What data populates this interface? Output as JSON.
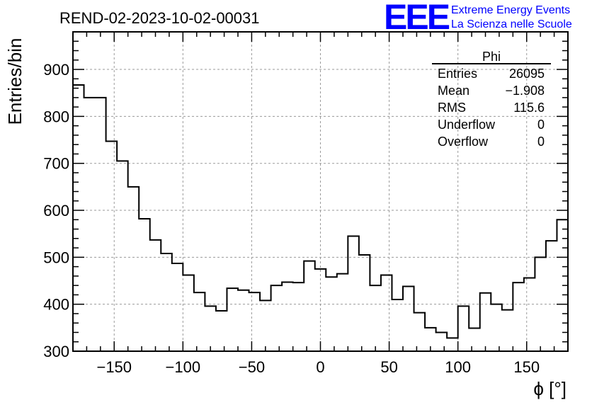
{
  "header": {
    "run_title": "REND-02-2023-10-02-00031"
  },
  "logo": {
    "mark": "EEE",
    "line1": "Extreme Energy Events",
    "line2": "La Scienza nelle Scuole",
    "color": "#0000ff"
  },
  "stats": {
    "name": "Phi",
    "rows": [
      {
        "label": "Entries",
        "value": "26095"
      },
      {
        "label": "Mean",
        "value": "−1.908"
      },
      {
        "label": "RMS",
        "value": "115.6"
      },
      {
        "label": "Underflow",
        "value": "0"
      },
      {
        "label": "Overflow",
        "value": "0"
      }
    ]
  },
  "chart_data": {
    "type": "bar",
    "style": "step-histogram",
    "title": "REND-02-2023-10-02-00031",
    "xlabel": "ϕ [°]",
    "ylabel": "Entries/bin",
    "xlim": [
      -180,
      180
    ],
    "ylim": [
      300,
      980
    ],
    "bin_width": 8,
    "x_ticks": [
      -150,
      -100,
      -50,
      0,
      50,
      100,
      150
    ],
    "x_tick_labels": [
      "−150",
      "−100",
      "−50",
      "0",
      "50",
      "100",
      "150"
    ],
    "y_ticks": [
      300,
      400,
      500,
      600,
      700,
      800,
      900
    ],
    "y_tick_labels": [
      "300",
      "400",
      "500",
      "600",
      "700",
      "800",
      "900"
    ],
    "grid": true,
    "bin_edges": [
      -180,
      -172,
      -164,
      -156,
      -148,
      -140,
      -132,
      -124,
      -116,
      -108,
      -100,
      -92,
      -84,
      -76,
      -68,
      -60,
      -52,
      -44,
      -36,
      -28,
      -20,
      -12,
      -4,
      4,
      12,
      20,
      28,
      36,
      44,
      52,
      60,
      68,
      76,
      84,
      92,
      100,
      108,
      116,
      124,
      132,
      140,
      148,
      156,
      164,
      172,
      180
    ],
    "values": [
      867,
      840,
      840,
      747,
      705,
      650,
      582,
      537,
      508,
      487,
      462,
      425,
      396,
      386,
      434,
      430,
      425,
      408,
      440,
      447,
      446,
      492,
      475,
      458,
      465,
      545,
      505,
      440,
      462,
      410,
      438,
      382,
      350,
      340,
      328,
      396,
      349,
      424,
      400,
      388,
      446,
      456,
      500,
      535,
      580
    ],
    "color": "#000000"
  }
}
